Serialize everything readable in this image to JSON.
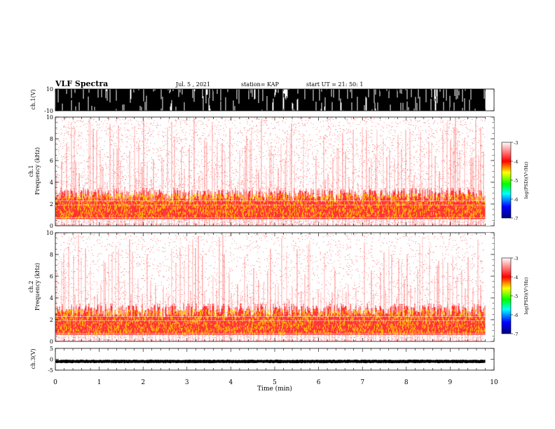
{
  "header": {
    "title": "VLF Spectra",
    "date": "Jul. 5 , 2021",
    "station": "station= KAP",
    "start": "start UT = 21: 50: 1"
  },
  "chart_data": [
    {
      "type": "line",
      "panel": "waveform-ch1",
      "ylabel": "ch.1(V)",
      "ylim": [
        -10,
        10
      ],
      "yticks": [
        "10",
        "-10"
      ],
      "xlim": [
        0,
        10
      ],
      "data_extent_min": 9.8,
      "note": "saturated noisy waveform filling the range"
    },
    {
      "type": "heatmap",
      "panel": "spectrogram-ch1",
      "ylabel": "ch.1\nFrequency (kHz)",
      "ylim": [
        0,
        10
      ],
      "yticks": [
        "0",
        "2",
        "4",
        "6",
        "8",
        "10"
      ],
      "xlim": [
        0,
        10
      ],
      "data_extent_min": 9.8,
      "colorbar": {
        "label": "log(PSD)(V²/Hz)",
        "range": [
          -7,
          -3
        ],
        "ticks": [
          "-3",
          "-4",
          "-5",
          "-6",
          "-7"
        ]
      }
    },
    {
      "type": "heatmap",
      "panel": "spectrogram-ch2",
      "ylabel": "ch.2\nFrequency (kHz)",
      "ylim": [
        0,
        10
      ],
      "yticks": [
        "0",
        "2",
        "4",
        "6",
        "8",
        "10"
      ],
      "xlim": [
        0,
        10
      ],
      "data_extent_min": 9.8,
      "colorbar": {
        "label": "log(PSD)(V²/Hz)",
        "range": [
          -7,
          -3
        ],
        "ticks": [
          "-3",
          "-4",
          "-5",
          "-6",
          "-7"
        ]
      }
    },
    {
      "type": "line",
      "panel": "waveform-ch3",
      "ylabel": "ch.3(V)",
      "ylim": [
        -5,
        5
      ],
      "yticks": [
        "5",
        "0",
        "-5"
      ],
      "xlim": [
        0,
        10
      ],
      "xlabel": "Time (min)",
      "xticks": [
        "0",
        "1",
        "2",
        "3",
        "4",
        "5",
        "6",
        "7",
        "8",
        "9",
        "10"
      ],
      "data_extent_min": 9.8,
      "note": "narrow band around -1 V"
    }
  ],
  "colors": {
    "trace": "#000000",
    "spectrum_low": "#ff0000",
    "spectrum_high": "#ffff00",
    "colormap": [
      "#000080",
      "#0000ff",
      "#00ffff",
      "#00ff00",
      "#ffff00",
      "#ff0000",
      "#ffffff"
    ]
  }
}
